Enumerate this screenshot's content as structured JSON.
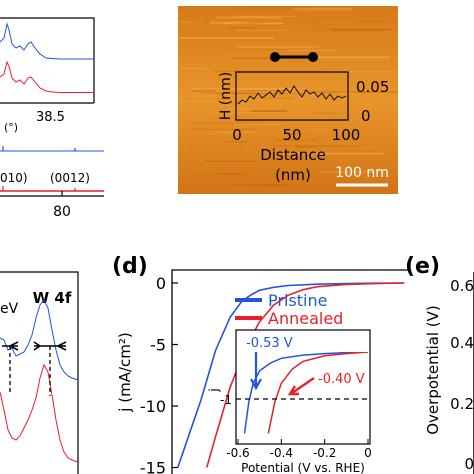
{
  "panel_d_label": "(d)",
  "panel_e_label": "(e)",
  "colors": {
    "pristine": "#2255dd",
    "annealed": "#e8202a",
    "afm_bg_dark": "#c86a10",
    "afm_bg_mid": "#e08a20",
    "afm_bg_light": "#f2aa40"
  },
  "panel_a": {
    "x_ticks": [
      "80"
    ],
    "annotation_angle": "(°)",
    "annotation_peak": "38.5",
    "peak_labels": [
      "010)",
      "(0012)"
    ]
  },
  "panel_b": {
    "y_label": "H (nm)",
    "x_label_line1": "Distance",
    "x_label_line2": "(nm)",
    "x_ticks": [
      "0",
      "50",
      "100"
    ],
    "y_ticks": [
      "0.05",
      "0"
    ],
    "scale_bar": "100 nm"
  },
  "panel_c": {
    "title": "W 4f",
    "annotation": "eV"
  },
  "panel_e": {
    "y_label": "Overpotential (V)",
    "y_ticks": [
      "0.6",
      "0.4",
      "0.2",
      "0"
    ]
  },
  "chart_data": [
    {
      "type": "line",
      "panel": "d",
      "xlabel": "",
      "ylabel": "j (mA/cm²)",
      "ylim": [
        -15,
        0.5
      ],
      "y_ticks": [
        "0",
        "-5",
        "-10",
        "-15"
      ],
      "legend": [
        "Pristine",
        "Annealed"
      ],
      "legend_position": "top-right",
      "series": [
        {
          "name": "Pristine",
          "color": "#2255dd",
          "x": [
            0.0,
            -0.1,
            -0.2,
            -0.3,
            -0.4,
            -0.45,
            -0.5,
            -0.53,
            -0.56,
            -0.6,
            -0.65,
            -0.7,
            -0.78
          ],
          "y": [
            0.0,
            -0.02,
            -0.05,
            -0.1,
            -0.2,
            -0.35,
            -0.6,
            -1.0,
            -1.5,
            -2.8,
            -5.5,
            -9.5,
            -15
          ]
        },
        {
          "name": "Annealed",
          "color": "#e8202a",
          "x": [
            0.0,
            -0.1,
            -0.2,
            -0.3,
            -0.35,
            -0.4,
            -0.45,
            -0.5,
            -0.55,
            -0.6,
            -0.65,
            -0.68
          ],
          "y": [
            0.0,
            -0.05,
            -0.12,
            -0.3,
            -0.55,
            -1.0,
            -1.8,
            -3.2,
            -5.5,
            -8.5,
            -12.5,
            -15
          ]
        }
      ],
      "inset": {
        "xlabel": "Potential (V vs. RHE)",
        "ylabel": "j",
        "xlim": [
          -0.6,
          0
        ],
        "ylim": [
          -3,
          0
        ],
        "x_ticks": [
          "-0.6",
          "-0.4",
          "-0.2",
          "0"
        ],
        "y_ticks": [
          "-1"
        ],
        "reference_line_y": -1,
        "annotations": [
          "-0.53 V",
          "-0.40 V"
        ],
        "series": [
          {
            "name": "Pristine",
            "x": [
              0.0,
              -0.1,
              -0.2,
              -0.3,
              -0.4,
              -0.45,
              -0.5,
              -0.53,
              -0.55,
              -0.57
            ],
            "y": [
              0.0,
              -0.02,
              -0.05,
              -0.1,
              -0.2,
              -0.35,
              -0.6,
              -1.0,
              -1.6,
              -2.6
            ]
          },
          {
            "name": "Annealed",
            "x": [
              0.0,
              -0.1,
              -0.2,
              -0.3,
              -0.35,
              -0.4,
              -0.43,
              -0.46
            ],
            "y": [
              0.0,
              -0.05,
              -0.12,
              -0.3,
              -0.55,
              -1.0,
              -1.6,
              -2.6
            ]
          }
        ]
      }
    }
  ]
}
